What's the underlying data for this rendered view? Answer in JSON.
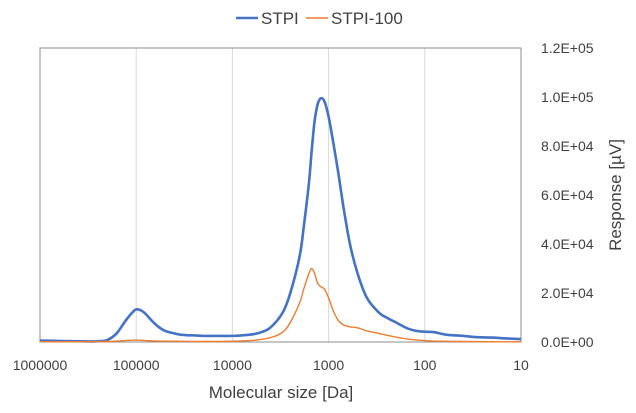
{
  "chart_data": {
    "type": "line",
    "title": "",
    "xlabel": "Molecular size [Da]",
    "ylabel": "Response [µV]",
    "x_scale": "log",
    "x_reversed": true,
    "xlim": [
      1000000,
      10
    ],
    "ylim": [
      0,
      120000
    ],
    "grid": {
      "x": true,
      "y": false
    },
    "legend_position": "top",
    "x_tick_labels": [
      "1000000",
      "100000",
      "10000",
      "1000",
      "100",
      "10"
    ],
    "y_tick_labels": [
      "0.0E+00",
      "2.0E+04",
      "4.0E+04",
      "6.0E+04",
      "8.0E+04",
      "1.0E+05",
      "1.2E+05"
    ],
    "series": [
      {
        "name": "STPI",
        "color": "#4472c4",
        "x": [
          1000000,
          600000,
          400000,
          300000,
          250000,
          200000,
          160000,
          130000,
          110000,
          100000,
          90000,
          80000,
          70000,
          60000,
          50000,
          40000,
          35000,
          30000,
          25000,
          20000,
          15000,
          10000,
          8000,
          6000,
          5000,
          4000,
          3000,
          2500,
          2000,
          1800,
          1600,
          1500,
          1400,
          1300,
          1200,
          1100,
          1000,
          900,
          800,
          700,
          600,
          500,
          400,
          300,
          250,
          200,
          150,
          120,
          100,
          80,
          60,
          40,
          30,
          20,
          15,
          10
        ],
        "y": [
          600,
          400,
          300,
          250,
          300,
          800,
          3500,
          8500,
          12000,
          13300,
          13000,
          11500,
          9000,
          6500,
          4500,
          3500,
          3000,
          2800,
          2700,
          2500,
          2500,
          2500,
          2700,
          3200,
          4000,
          6000,
          12000,
          20000,
          35000,
          48000,
          65000,
          78000,
          90000,
          97000,
          99500,
          98000,
          92000,
          82000,
          70000,
          55000,
          40000,
          28000,
          18000,
          12000,
          10000,
          8000,
          5500,
          4500,
          4200,
          4000,
          3000,
          2500,
          2000,
          1800,
          1500,
          1200
        ]
      },
      {
        "name": "STPI-100",
        "color": "#ed7d31",
        "x": [
          1000000,
          400000,
          200000,
          150000,
          120000,
          100000,
          80000,
          60000,
          40000,
          20000,
          10000,
          6000,
          4000,
          3000,
          2500,
          2000,
          1800,
          1600,
          1500,
          1400,
          1300,
          1200,
          1100,
          1000,
          900,
          800,
          700,
          600,
          500,
          400,
          300,
          250,
          200,
          150,
          120,
          100,
          80,
          60,
          40,
          20,
          10
        ],
        "y": [
          100,
          100,
          200,
          400,
          700,
          800,
          600,
          400,
          300,
          200,
          300,
          700,
          1800,
          4000,
          8000,
          16000,
          22000,
          28000,
          30000,
          28000,
          24000,
          22500,
          21500,
          18000,
          13000,
          9000,
          7000,
          6200,
          5800,
          4500,
          3500,
          2800,
          2000,
          1200,
          800,
          600,
          400,
          300,
          200,
          100,
          100
        ]
      }
    ]
  }
}
